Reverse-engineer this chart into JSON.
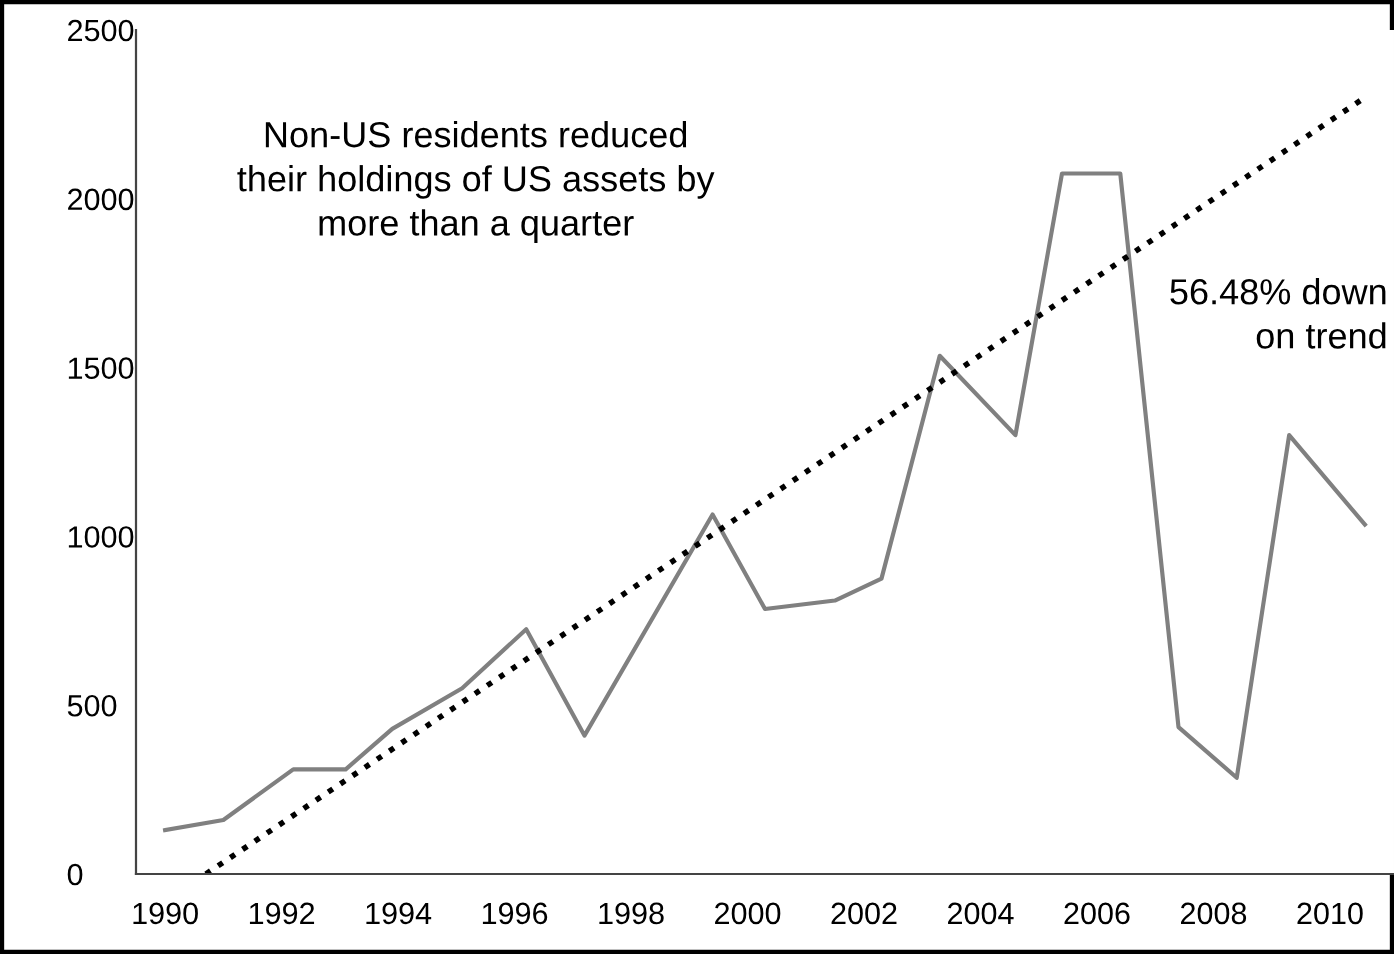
{
  "chart_data": {
    "type": "line",
    "annotations": [
      "Non-US residents reduced\ntheir holdings of US assets by\nmore than a quarter",
      "56.48% down\non trend"
    ],
    "xlim": [
      1989.5,
      2011.1
    ],
    "ylim": [
      0,
      2500
    ],
    "xticks": [
      1990,
      1992,
      1994,
      1996,
      1998,
      2000,
      2002,
      2004,
      2006,
      2008,
      2010
    ],
    "yticks": [
      0,
      500,
      1000,
      1500,
      2000,
      2500
    ],
    "grid": false,
    "series": [
      {
        "color": "#808080",
        "line_style": "solid",
        "x": [
          1990.0,
          1991.0,
          1992.2,
          1993.1,
          1993.9,
          1995.1,
          1996.2,
          1997.2,
          1999.4,
          2000.3,
          2001.5,
          2002.3,
          2003.3,
          2004.6,
          2005.4,
          2006.4,
          2007.4,
          2008.4,
          2009.3,
          2010.6
        ],
        "values": [
          130,
          160,
          310,
          310,
          430,
          550,
          725,
          410,
          1065,
          785,
          810,
          875,
          1535,
          1300,
          2075,
          2075,
          435,
          285,
          1300,
          1035
        ]
      },
      {
        "color": "#000000",
        "line_style": "dotted",
        "x": [
          1990.7,
          2010.6
        ],
        "values": [
          0,
          2300
        ]
      }
    ]
  }
}
